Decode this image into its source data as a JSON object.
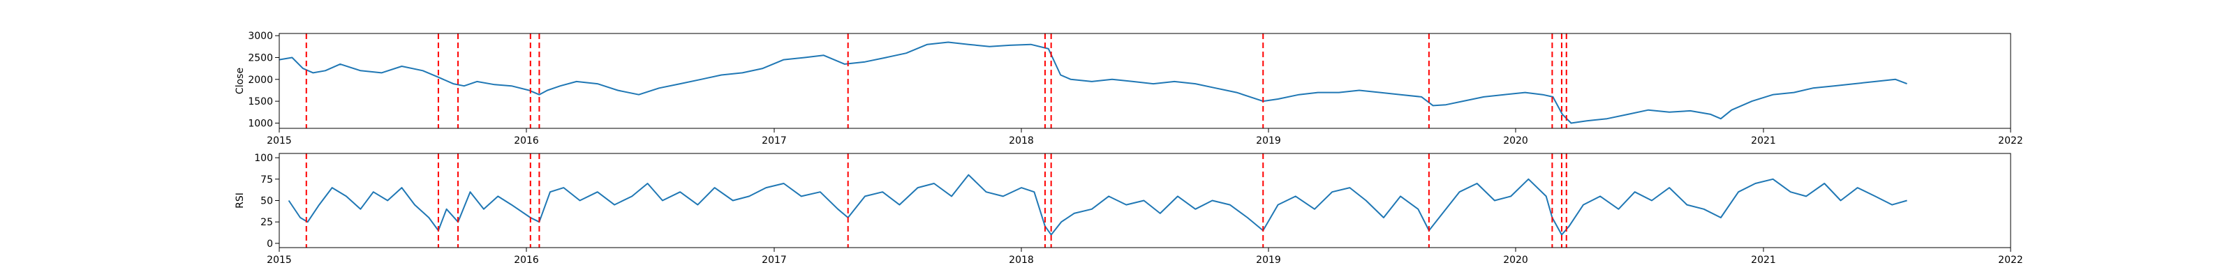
{
  "chart_data": [
    {
      "type": "line",
      "ylabel": "Close",
      "xlim": [
        "2015-01-01",
        "2022-01-01"
      ],
      "ylim": [
        880,
        3050
      ],
      "x_ticks": [
        "2015",
        "2016",
        "2017",
        "2018",
        "2019",
        "2020",
        "2021",
        "2022"
      ],
      "y_ticks": [
        1000,
        1500,
        2000,
        2500,
        3000
      ],
      "grid": false,
      "line_color": "#1f77b4",
      "event_color": "#ff0000",
      "series": [
        {
          "x": [
            "2015-01-01",
            "2015-01-20",
            "2015-02-05",
            "2015-02-20",
            "2015-03-10",
            "2015-04-01",
            "2015-05-01",
            "2015-06-01",
            "2015-07-01",
            "2015-08-01",
            "2015-08-24",
            "2015-09-15",
            "2015-10-01",
            "2015-10-20",
            "2015-11-15",
            "2015-12-10",
            "2016-01-05",
            "2016-01-20",
            "2016-02-01",
            "2016-02-20",
            "2016-03-15",
            "2016-04-15",
            "2016-05-15",
            "2016-06-15",
            "2016-07-15",
            "2016-08-15",
            "2016-09-15",
            "2016-10-15",
            "2016-11-15",
            "2016-12-15",
            "2017-01-15",
            "2017-02-15",
            "2017-03-15",
            "2017-04-15",
            "2017-05-15",
            "2017-06-15",
            "2017-07-15",
            "2017-08-15",
            "2017-09-15",
            "2017-10-15",
            "2017-11-15",
            "2017-12-15",
            "2018-01-15",
            "2018-02-10",
            "2018-02-28",
            "2018-03-15",
            "2018-04-15",
            "2018-05-15",
            "2018-06-15",
            "2018-07-15",
            "2018-08-15",
            "2018-09-15",
            "2018-10-15",
            "2018-11-15",
            "2018-12-24",
            "2019-01-15",
            "2019-02-15",
            "2019-03-15",
            "2019-04-15",
            "2019-05-15",
            "2019-06-15",
            "2019-07-15",
            "2019-08-15",
            "2019-09-01",
            "2019-09-20",
            "2019-10-15",
            "2019-11-15",
            "2019-12-15",
            "2020-01-15",
            "2020-02-10",
            "2020-02-25",
            "2020-03-10",
            "2020-03-23",
            "2020-04-15",
            "2020-05-15",
            "2020-06-15",
            "2020-07-15",
            "2020-08-15",
            "2020-09-15",
            "2020-10-15",
            "2020-10-30",
            "2020-11-15",
            "2020-12-15",
            "2021-01-15",
            "2021-02-15",
            "2021-03-15",
            "2021-04-15",
            "2021-05-15",
            "2021-06-15",
            "2021-07-15",
            "2021-08-01"
          ],
          "y": [
            2450,
            2500,
            2250,
            2150,
            2200,
            2350,
            2200,
            2150,
            2300,
            2200,
            2050,
            1900,
            1850,
            1950,
            1880,
            1850,
            1750,
            1650,
            1750,
            1850,
            1950,
            1900,
            1750,
            1650,
            1800,
            1900,
            2000,
            2100,
            2150,
            2250,
            2450,
            2500,
            2550,
            2350,
            2400,
            2500,
            2600,
            2800,
            2850,
            2800,
            2750,
            2780,
            2800,
            2700,
            2100,
            2000,
            1950,
            2000,
            1950,
            1900,
            1950,
            1900,
            1800,
            1700,
            1500,
            1550,
            1650,
            1700,
            1700,
            1750,
            1700,
            1650,
            1600,
            1400,
            1420,
            1500,
            1600,
            1650,
            1700,
            1650,
            1600,
            1200,
            1000,
            1050,
            1100,
            1200,
            1300,
            1250,
            1280,
            1200,
            1100,
            1300,
            1500,
            1650,
            1700,
            1800,
            1850,
            1900,
            1950,
            2000,
            1900
          ]
        }
      ],
      "events": [
        "2015-02-10",
        "2015-08-24",
        "2015-09-22",
        "2016-01-07",
        "2016-01-20",
        "2017-04-20",
        "2018-02-05",
        "2018-02-14",
        "2018-12-24",
        "2019-08-26",
        "2020-02-24",
        "2020-03-09",
        "2020-03-16"
      ]
    },
    {
      "type": "line",
      "ylabel": "RSI",
      "xlim": [
        "2015-01-01",
        "2022-01-01"
      ],
      "ylim": [
        -5,
        105
      ],
      "x_ticks": [
        "2015",
        "2016",
        "2017",
        "2018",
        "2019",
        "2020",
        "2021",
        "2022"
      ],
      "y_ticks": [
        0,
        25,
        50,
        75,
        100
      ],
      "grid": false,
      "line_color": "#1f77b4",
      "event_color": "#ff0000",
      "series": [
        {
          "x": [
            "2015-01-15",
            "2015-02-01",
            "2015-02-12",
            "2015-03-01",
            "2015-03-20",
            "2015-04-10",
            "2015-05-01",
            "2015-05-20",
            "2015-06-10",
            "2015-07-01",
            "2015-07-20",
            "2015-08-10",
            "2015-08-24",
            "2015-09-05",
            "2015-09-22",
            "2015-10-10",
            "2015-10-30",
            "2015-11-20",
            "2015-12-10",
            "2016-01-07",
            "2016-01-20",
            "2016-02-05",
            "2016-02-25",
            "2016-03-20",
            "2016-04-15",
            "2016-05-10",
            "2016-06-05",
            "2016-06-28",
            "2016-07-20",
            "2016-08-15",
            "2016-09-10",
            "2016-10-05",
            "2016-11-01",
            "2016-11-25",
            "2016-12-20",
            "2017-01-15",
            "2017-02-10",
            "2017-03-10",
            "2017-04-05",
            "2017-04-20",
            "2017-05-15",
            "2017-06-10",
            "2017-07-05",
            "2017-08-01",
            "2017-08-25",
            "2017-09-20",
            "2017-10-15",
            "2017-11-10",
            "2017-12-05",
            "2018-01-01",
            "2018-01-20",
            "2018-02-05",
            "2018-02-14",
            "2018-03-01",
            "2018-03-20",
            "2018-04-15",
            "2018-05-10",
            "2018-06-05",
            "2018-07-01",
            "2018-07-25",
            "2018-08-20",
            "2018-09-15",
            "2018-10-10",
            "2018-11-05",
            "2018-12-01",
            "2018-12-24",
            "2019-01-15",
            "2019-02-10",
            "2019-03-10",
            "2019-04-05",
            "2019-05-01",
            "2019-05-25",
            "2019-06-20",
            "2019-07-15",
            "2019-08-10",
            "2019-08-26",
            "2019-09-15",
            "2019-10-10",
            "2019-11-05",
            "2019-12-01",
            "2019-12-25",
            "2020-01-20",
            "2020-02-15",
            "2020-02-24",
            "2020-03-09",
            "2020-03-20",
            "2020-04-10",
            "2020-05-05",
            "2020-06-01",
            "2020-06-25",
            "2020-07-20",
            "2020-08-15",
            "2020-09-10",
            "2020-10-05",
            "2020-10-30",
            "2020-11-25",
            "2020-12-20",
            "2021-01-15",
            "2021-02-10",
            "2021-03-05",
            "2021-04-01",
            "2021-04-25",
            "2021-05-20",
            "2021-06-15",
            "2021-07-10",
            "2021-08-01"
          ],
          "y": [
            50,
            30,
            25,
            45,
            65,
            55,
            40,
            60,
            50,
            65,
            45,
            30,
            15,
            40,
            25,
            60,
            40,
            55,
            45,
            30,
            25,
            60,
            65,
            50,
            60,
            45,
            55,
            70,
            50,
            60,
            45,
            65,
            50,
            55,
            65,
            70,
            55,
            60,
            40,
            30,
            55,
            60,
            45,
            65,
            70,
            55,
            80,
            60,
            55,
            65,
            60,
            20,
            10,
            25,
            35,
            40,
            55,
            45,
            50,
            35,
            55,
            40,
            50,
            45,
            30,
            15,
            45,
            55,
            40,
            60,
            65,
            50,
            30,
            55,
            40,
            15,
            35,
            60,
            70,
            50,
            55,
            75,
            55,
            30,
            10,
            20,
            45,
            55,
            40,
            60,
            50,
            65,
            45,
            40,
            30,
            60,
            70,
            75,
            60,
            55,
            70,
            50,
            65,
            55,
            45,
            50
          ]
        }
      ],
      "events": [
        "2015-02-10",
        "2015-08-24",
        "2015-09-22",
        "2016-01-07",
        "2016-01-20",
        "2017-04-20",
        "2018-02-05",
        "2018-02-14",
        "2018-12-24",
        "2019-08-26",
        "2020-02-24",
        "2020-03-09",
        "2020-03-16"
      ]
    }
  ]
}
